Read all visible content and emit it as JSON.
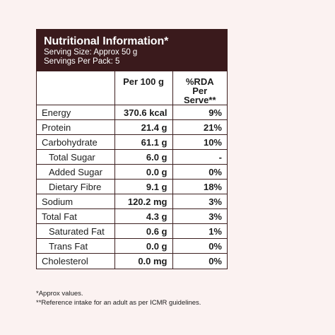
{
  "panel": {
    "title": "Nutritional Information*",
    "serving_size": "Serving Size: Approx 50 g",
    "servings_per_pack": "Servings Per Pack: 5"
  },
  "table": {
    "headers": [
      "",
      "Per 100 g",
      "%RDA Per Serve**"
    ],
    "rows": [
      {
        "name": "Energy",
        "per100": "370.6 kcal",
        "rda": "9%"
      },
      {
        "name": "Protein",
        "per100": "21.4 g",
        "rda": "21%"
      },
      {
        "name": "Carbohydrate",
        "per100": "61.1 g",
        "rda": "10%"
      },
      {
        "name": "Total Sugar",
        "per100": "6.0 g",
        "rda": "-"
      },
      {
        "name": "Added Sugar",
        "per100": "0.0 g",
        "rda": "0%"
      },
      {
        "name": "Dietary Fibre",
        "per100": "9.1 g",
        "rda": "18%"
      },
      {
        "name": "Sodium",
        "per100": "120.2 mg",
        "rda": "3%"
      },
      {
        "name": "Total Fat",
        "per100": "4.3 g",
        "rda": "3%"
      },
      {
        "name": "Saturated Fat",
        "per100": "0.6 g",
        "rda": "1%"
      },
      {
        "name": "Trans Fat",
        "per100": "0.0 g",
        "rda": "0%"
      },
      {
        "name": "Cholesterol",
        "per100": "0.0 mg",
        "rda": "0%"
      }
    ]
  },
  "footnotes": {
    "approx": "*Approx values.",
    "reference": "**Reference intake for an adult as per ICMR guidelines."
  },
  "colors": {
    "header_bg": "#3a1a1c",
    "page_bg": "#fbf2f1"
  }
}
